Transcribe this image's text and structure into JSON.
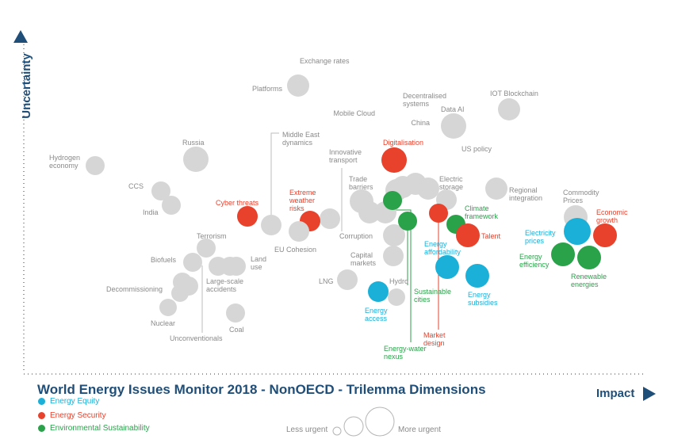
{
  "chart_data": {
    "type": "scatter",
    "title": "World Energy Issues Monitor 2018 - NonOECD - Trilemma Dimensions",
    "xlabel": "Impact",
    "ylabel": "Uncertainty",
    "legend": {
      "placement": "bottom-left",
      "items": [
        {
          "name": "Energy Equity",
          "color": "#1ab0d8"
        },
        {
          "name": "Energy Security",
          "color": "#e8412c"
        },
        {
          "name": "Environmental Sustainability",
          "color": "#2aa24a"
        }
      ],
      "size_legend": {
        "less": "Less urgent",
        "more": "More urgent"
      }
    },
    "colors": {
      "grey": "#d6d6d6",
      "equity": "#1ab0d8",
      "security": "#e8412c",
      "sustainability": "#2aa24a",
      "axis": "#1f4e79"
    },
    "points": [
      {
        "label": "Exchange rates",
        "category": "grey",
        "impact": 4.4,
        "uncertainty": 9.5
      },
      {
        "label": "Platforms",
        "category": "grey",
        "impact": 4.3,
        "uncertainty": 8.8
      },
      {
        "label": "IOT Blockchain",
        "category": "grey",
        "impact": 7.6,
        "uncertainty": 8.2
      },
      {
        "label": "Decentralised systems",
        "category": "grey",
        "impact": 6.1,
        "uncertainty": 7.7
      },
      {
        "label": "Data AI",
        "category": "grey",
        "impact": 6.8,
        "uncertainty": 7.8
      },
      {
        "label": "Mobile Cloud",
        "category": "grey",
        "impact": 5.7,
        "uncertainty": 7.3
      },
      {
        "label": "China",
        "category": "grey",
        "impact": 6.6,
        "uncertainty": 7.1
      },
      {
        "label": "Russia",
        "category": "grey",
        "impact": 2.7,
        "uncertainty": 6.3
      },
      {
        "label": "Middle East dynamics",
        "category": "grey",
        "impact": 4.9,
        "uncertainty": 4.5
      },
      {
        "label": "Hydrogen economy",
        "category": "grey",
        "impact": 1.3,
        "uncertainty": 6.1
      },
      {
        "label": "Digitalisation",
        "category": "security",
        "impact": 5.8,
        "uncertainty": 6.2
      },
      {
        "label": "US policy",
        "category": "grey",
        "impact": 6.9,
        "uncertainty": 5.9
      },
      {
        "label": "Innovative transport",
        "category": "grey",
        "impact": 5.2,
        "uncertainty": 4.6
      },
      {
        "label": "CCS",
        "category": "grey",
        "impact": 2.3,
        "uncertainty": 5.3
      },
      {
        "label": "Trade barriers",
        "category": "grey",
        "impact": 5.7,
        "uncertainty": 5.4
      },
      {
        "label": "Electric storage",
        "category": "grey",
        "impact": 6.5,
        "uncertainty": 5.3
      },
      {
        "label": "Regional integration",
        "category": "grey",
        "impact": 7.3,
        "uncertainty": 5.4
      },
      {
        "label": "India",
        "category": "grey",
        "impact": 2.5,
        "uncertainty": 4.8
      },
      {
        "label": "Commodity Prices",
        "category": "grey",
        "impact": 8.4,
        "uncertainty": 4.6
      },
      {
        "label": "Cyber threats",
        "category": "security",
        "impact": 3.6,
        "uncertainty": 4.6
      },
      {
        "label": "Extreme weather risks",
        "category": "security",
        "impact": 4.5,
        "uncertainty": 4.5
      },
      {
        "label": "Climate framework",
        "category": "sustainability",
        "impact": 6.7,
        "uncertainty": 4.3
      },
      {
        "label": "Economic growth",
        "category": "security",
        "impact": 8.8,
        "uncertainty": 4.0
      },
      {
        "label": "Electricity prices",
        "category": "equity",
        "impact": 8.4,
        "uncertainty": 4.0
      },
      {
        "label": "Talent",
        "category": "security",
        "impact": 6.9,
        "uncertainty": 4.0
      },
      {
        "label": "Corruption",
        "category": "grey",
        "impact": 5.7,
        "uncertainty": 4.1
      },
      {
        "label": "Terrorism",
        "category": "grey",
        "impact": 3.0,
        "uncertainty": 3.7
      },
      {
        "label": "EU Cohesion",
        "category": "grey",
        "impact": 4.4,
        "uncertainty": 4.1
      },
      {
        "label": "Energy efficiency",
        "category": "sustainability",
        "impact": 8.2,
        "uncertainty": 3.5
      },
      {
        "label": "Renewable energies",
        "category": "sustainability",
        "impact": 8.6,
        "uncertainty": 3.5
      },
      {
        "label": "Energy affordability",
        "category": "equity",
        "impact": 6.6,
        "uncertainty": 3.2
      },
      {
        "label": "Biofuels",
        "category": "grey",
        "impact": 2.8,
        "uncertainty": 3.4
      },
      {
        "label": "Land use",
        "category": "grey",
        "impact": 3.5,
        "uncertainty": 3.3
      },
      {
        "label": "Capital markets",
        "category": "grey",
        "impact": 5.8,
        "uncertainty": 3.5
      },
      {
        "label": "Large-scale accidents",
        "category": "grey",
        "impact": 3.2,
        "uncertainty": 3.3
      },
      {
        "label": "LNG",
        "category": "grey",
        "impact": 5.1,
        "uncertainty": 2.8
      },
      {
        "label": "Hydro",
        "category": "grey",
        "impact": 5.8,
        "uncertainty": 2.3
      },
      {
        "label": "Energy subsidies",
        "category": "equity",
        "impact": 7.0,
        "uncertainty": 2.9
      },
      {
        "label": "Decommissioning",
        "category": "grey",
        "impact": 2.7,
        "uncertainty": 2.8
      },
      {
        "label": "Sustainable cities",
        "category": "sustainability",
        "impact": 6.0,
        "uncertainty": 4.2
      },
      {
        "label": "Energy access",
        "category": "equity",
        "impact": 5.5,
        "uncertainty": 2.5
      },
      {
        "label": "Nuclear",
        "category": "grey",
        "impact": 2.5,
        "uncertainty": 2.4
      },
      {
        "label": "Coal",
        "category": "grey",
        "impact": 3.5,
        "uncertainty": 2.1
      },
      {
        "label": "Unconventionals",
        "category": "grey",
        "impact": 3.0,
        "uncertainty": 2.6
      },
      {
        "label": "Market design",
        "category": "security",
        "impact": 6.4,
        "uncertainty": 4.3
      },
      {
        "label": "Energy-water nexus",
        "category": "sustainability",
        "impact": 5.7,
        "uncertainty": 4.6
      }
    ]
  }
}
